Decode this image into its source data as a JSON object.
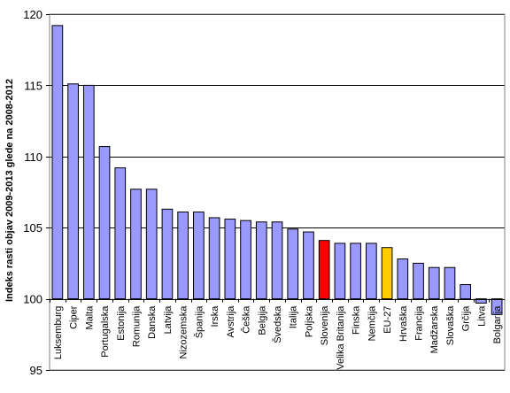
{
  "chart_data": {
    "type": "bar",
    "title": "",
    "xlabel": "",
    "ylabel": "Indeks rasti objav 2009-2013 glede na 2008-2012",
    "ylim": [
      95,
      120
    ],
    "yticks": [
      95,
      100,
      105,
      110,
      115,
      120
    ],
    "baseline": 100,
    "grid": "horizontal",
    "legend": "none",
    "colors": {
      "default": "#9999ff",
      "Slovenija": "#ff0000",
      "EU-27": "#ffcc00",
      "border": "#000000"
    },
    "categories": [
      "Luksemburg",
      "Ciper",
      "Malta",
      "Portugalska",
      "Estonija",
      "Romunija",
      "Danska",
      "Latvija",
      "Nizozemska",
      "Španija",
      "Irska",
      "Avstrija",
      "Češka",
      "Belgija",
      "Švedska",
      "Italija",
      "Poljska",
      "Slovenija",
      "Velika Britanija",
      "Finska",
      "Nemčija",
      "EU-27",
      "Hrvaška",
      "Francija",
      "Madžarska",
      "Slovaška",
      "Grčija",
      "Litva",
      "Bolgarija"
    ],
    "values": [
      119.2,
      115.1,
      115.0,
      110.7,
      109.2,
      107.7,
      107.7,
      106.3,
      106.1,
      106.1,
      105.7,
      105.6,
      105.5,
      105.4,
      105.4,
      104.9,
      104.7,
      104.1,
      103.9,
      103.9,
      103.9,
      103.6,
      102.8,
      102.5,
      102.2,
      102.2,
      101.0,
      99.7,
      98.9
    ]
  }
}
